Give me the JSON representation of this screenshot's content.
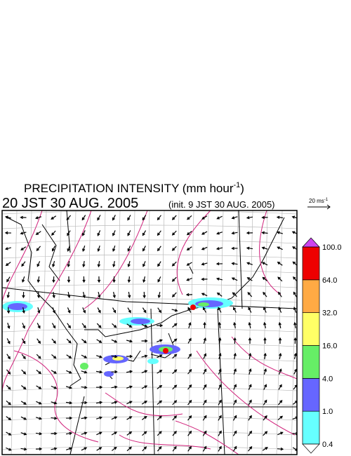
{
  "header": {
    "title": {
      "text": "PRECIPITATION INTENSITY (mm hour",
      "superscript": "-1",
      "close": ")"
    },
    "valid_time": "20 JST 30 AUG. 2005",
    "init_time": "(init. 9 JST 30 AUG. 2005)"
  },
  "wind_scale": {
    "text": "20 ms",
    "superscript": "-1"
  },
  "colorbar": {
    "levels": [
      {
        "value": 0.4,
        "label": "0.4"
      },
      {
        "value": 1,
        "label": "1.0"
      },
      {
        "value": 4,
        "label": "4.0"
      },
      {
        "value": 16,
        "label": "16.0"
      },
      {
        "value": 32,
        "label": "32.0"
      },
      {
        "value": 64,
        "label": "64.0"
      },
      {
        "value": 100,
        "label": "100.0"
      }
    ],
    "colors": [
      "#66ffff",
      "#6666ff",
      "#66ee66",
      "#ffff66",
      "#ffaa44",
      "#ee0000"
    ],
    "over_color": "#cc44ee",
    "under_color": "#ffffff"
  }
}
